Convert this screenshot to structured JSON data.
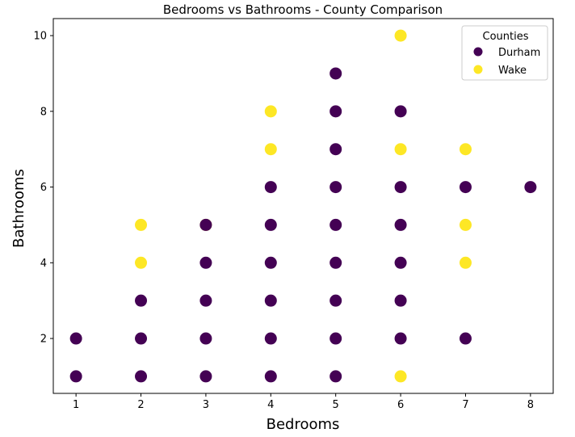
{
  "chart_data": {
    "type": "scatter",
    "title": "Bedrooms vs Bathrooms - County Comparison",
    "xlabel": "Bedrooms",
    "ylabel": "Bathrooms",
    "xlim": [
      0.65,
      8.35
    ],
    "ylim": [
      0.55,
      10.45
    ],
    "x_ticks": [
      1,
      2,
      3,
      4,
      5,
      6,
      7,
      8
    ],
    "y_ticks": [
      2,
      4,
      6,
      8,
      10
    ],
    "grid": false,
    "legend": {
      "title": "Counties",
      "placement": "top-right"
    },
    "series": [
      {
        "name": "Durham",
        "color": "#440154",
        "points": [
          [
            1,
            1
          ],
          [
            1,
            2
          ],
          [
            2,
            1
          ],
          [
            2,
            2
          ],
          [
            2,
            3
          ],
          [
            3,
            1
          ],
          [
            3,
            2
          ],
          [
            3,
            3
          ],
          [
            3,
            4
          ],
          [
            3,
            5
          ],
          [
            4,
            1
          ],
          [
            4,
            2
          ],
          [
            4,
            3
          ],
          [
            4,
            4
          ],
          [
            4,
            5
          ],
          [
            4,
            6
          ],
          [
            5,
            1
          ],
          [
            5,
            2
          ],
          [
            5,
            3
          ],
          [
            5,
            4
          ],
          [
            5,
            5
          ],
          [
            5,
            6
          ],
          [
            5,
            7
          ],
          [
            5,
            8
          ],
          [
            5,
            9
          ],
          [
            6,
            2
          ],
          [
            6,
            3
          ],
          [
            6,
            4
          ],
          [
            6,
            5
          ],
          [
            6,
            6
          ],
          [
            6,
            8
          ],
          [
            7,
            2
          ],
          [
            7,
            6
          ],
          [
            8,
            6
          ]
        ]
      },
      {
        "name": "Wake",
        "color": "#fde725",
        "points": [
          [
            2,
            4
          ],
          [
            2,
            5
          ],
          [
            3,
            5
          ],
          [
            4,
            7
          ],
          [
            4,
            8
          ],
          [
            6,
            1
          ],
          [
            6,
            7
          ],
          [
            6,
            10
          ],
          [
            7,
            4
          ],
          [
            7,
            5
          ],
          [
            7,
            7
          ]
        ]
      }
    ]
  }
}
